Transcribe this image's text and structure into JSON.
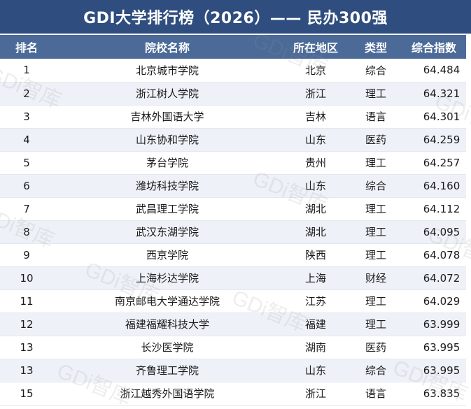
{
  "title": "GDI大学排行榜（2026）—— 民办300强",
  "headers": {
    "rank": "排名",
    "name": "院校名称",
    "region": "所在地区",
    "type": "类型",
    "score": "综合指数"
  },
  "rows": [
    {
      "rank": "1",
      "name": "北京城市学院",
      "region": "北京",
      "type": "综合",
      "score": "64.484"
    },
    {
      "rank": "2",
      "name": "浙江树人学院",
      "region": "浙江",
      "type": "理工",
      "score": "64.321"
    },
    {
      "rank": "3",
      "name": "吉林外国语大学",
      "region": "吉林",
      "type": "语言",
      "score": "64.301"
    },
    {
      "rank": "4",
      "name": "山东协和学院",
      "region": "山东",
      "type": "医药",
      "score": "64.259"
    },
    {
      "rank": "5",
      "name": "茅台学院",
      "region": "贵州",
      "type": "理工",
      "score": "64.257"
    },
    {
      "rank": "6",
      "name": "潍坊科技学院",
      "region": "山东",
      "type": "综合",
      "score": "64.160"
    },
    {
      "rank": "7",
      "name": "武昌理工学院",
      "region": "湖北",
      "type": "理工",
      "score": "64.112"
    },
    {
      "rank": "8",
      "name": "武汉东湖学院",
      "region": "湖北",
      "type": "理工",
      "score": "64.095"
    },
    {
      "rank": "9",
      "name": "西京学院",
      "region": "陕西",
      "type": "理工",
      "score": "64.078"
    },
    {
      "rank": "10",
      "name": "上海杉达学院",
      "region": "上海",
      "type": "财经",
      "score": "64.072"
    },
    {
      "rank": "11",
      "name": "南京邮电大学通达学院",
      "region": "江苏",
      "type": "理工",
      "score": "64.029"
    },
    {
      "rank": "12",
      "name": "福建福耀科技大学",
      "region": "福建",
      "type": "理工",
      "score": "63.999"
    },
    {
      "rank": "13",
      "name": "长沙医学院",
      "region": "湖南",
      "type": "医药",
      "score": "63.995"
    },
    {
      "rank": "13",
      "name": "齐鲁理工学院",
      "region": "山东",
      "type": "综合",
      "score": "63.995"
    },
    {
      "rank": "15",
      "name": "浙江越秀外国语学院",
      "region": "浙江",
      "type": "语言",
      "score": "63.835"
    }
  ],
  "watermark": "GDi智库"
}
